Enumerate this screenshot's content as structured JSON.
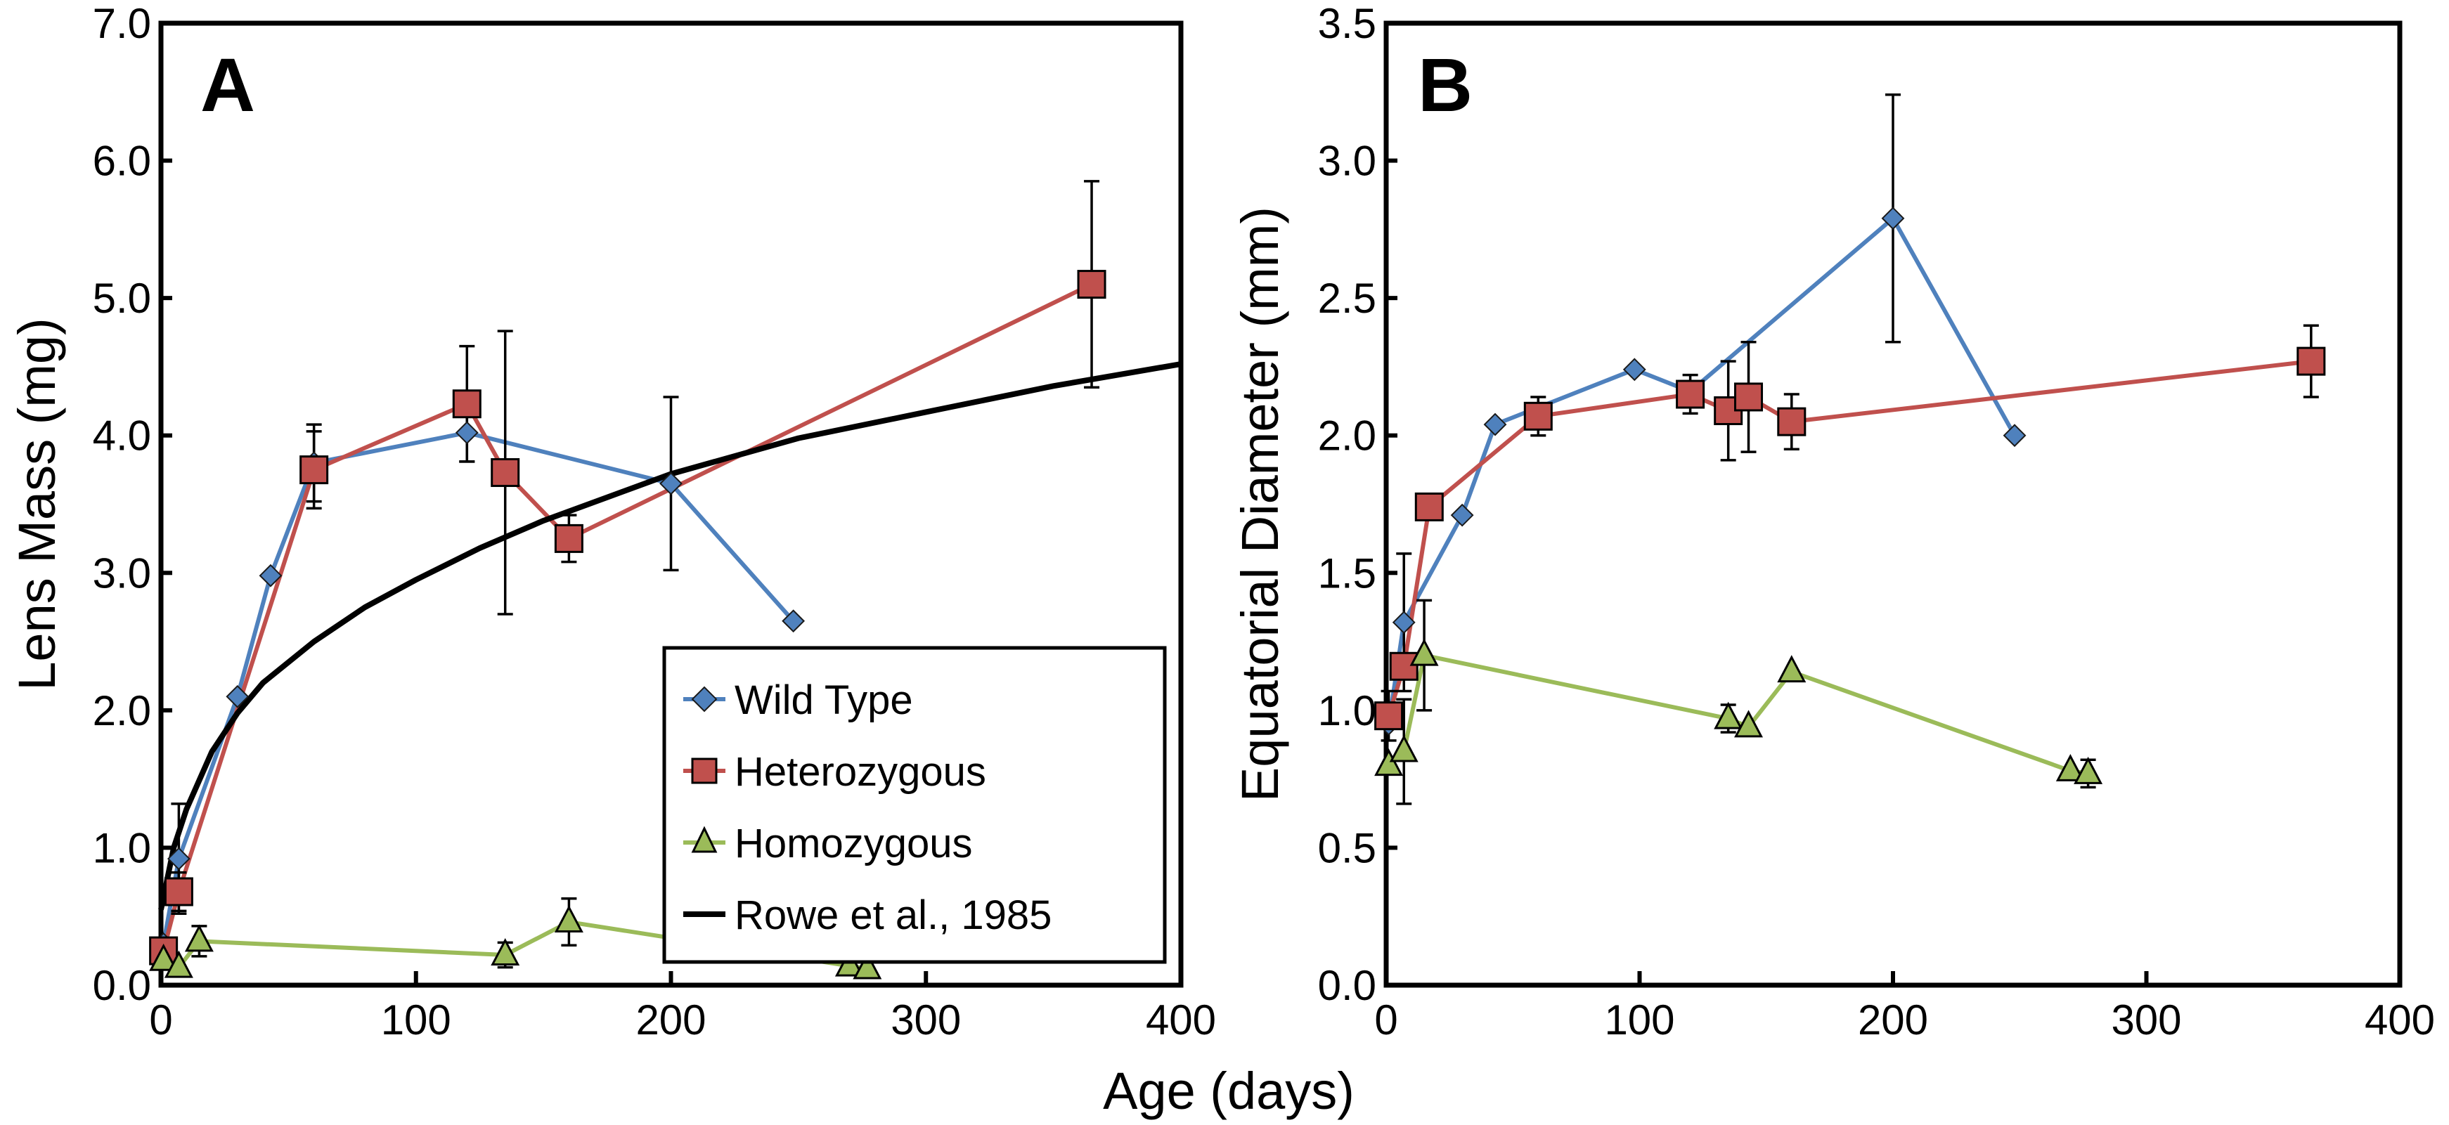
{
  "figure": {
    "xlabel_shared": "Age (days)"
  },
  "colors": {
    "wild_type": "#4f81bd",
    "heterozygous": "#c0504d",
    "homozygous": "#9bbb59",
    "rowe": "#000000"
  },
  "legend": {
    "placement": "lower-right of panel A",
    "entries": [
      {
        "label": "Wild Type",
        "marker": "diamond",
        "color": "#4f81bd"
      },
      {
        "label": "Heterozygous",
        "marker": "square",
        "color": "#c0504d"
      },
      {
        "label": "Homozygous",
        "marker": "triangle",
        "color": "#9bbb59"
      },
      {
        "label": "Rowe et al., 1985",
        "marker": "none",
        "color": "#000000"
      }
    ]
  },
  "chart_data": [
    {
      "type": "line",
      "panel": "A",
      "title": "",
      "xlabel": "Age (days)",
      "ylabel": "Lens Mass (mg)",
      "xlim": [
        0,
        400
      ],
      "ylim": [
        0,
        7
      ],
      "xticks": [
        "0",
        "100",
        "200",
        "300",
        "400"
      ],
      "yticks": [
        "0.0",
        "1.0",
        "2.0",
        "3.0",
        "4.0",
        "5.0",
        "6.0",
        "7.0"
      ],
      "grid": false,
      "legend": "lower-right",
      "series": [
        {
          "name": "Wild Type",
          "marker": "diamond",
          "points": [
            {
              "x": 1,
              "y": 0.3
            },
            {
              "x": 7,
              "y": 0.92,
              "err": 0.4
            },
            {
              "x": 30,
              "y": 2.1
            },
            {
              "x": 43,
              "y": 2.98
            },
            {
              "x": 60,
              "y": 3.8,
              "err": 0.28
            },
            {
              "x": 120,
              "y": 4.02,
              "err": 0.21
            },
            {
              "x": 200,
              "y": 3.65,
              "err": 0.63
            },
            {
              "x": 248,
              "y": 2.65
            }
          ]
        },
        {
          "name": "Heterozygous",
          "marker": "square",
          "points": [
            {
              "x": 1,
              "y": 0.25
            },
            {
              "x": 7,
              "y": 0.68,
              "err": 0.14
            },
            {
              "x": 60,
              "y": 3.75,
              "err": 0.28
            },
            {
              "x": 120,
              "y": 4.23,
              "err": 0.42
            },
            {
              "x": 135,
              "y": 3.73,
              "err": 1.03
            },
            {
              "x": 160,
              "y": 3.25,
              "err": 0.17
            },
            {
              "x": 365,
              "y": 5.1,
              "err": 0.75
            }
          ]
        },
        {
          "name": "Homozygous",
          "marker": "triangle",
          "points": [
            {
              "x": 1,
              "y": 0.18
            },
            {
              "x": 7,
              "y": 0.13
            },
            {
              "x": 15,
              "y": 0.32,
              "err": 0.11
            },
            {
              "x": 135,
              "y": 0.22,
              "err": 0.09
            },
            {
              "x": 160,
              "y": 0.46,
              "err": 0.17
            },
            {
              "x": 270,
              "y": 0.14
            },
            {
              "x": 277,
              "y": 0.12
            }
          ]
        },
        {
          "name": "Rowe et al., 1985",
          "marker": "none",
          "points": [
            {
              "x": 0,
              "y": 0.55
            },
            {
              "x": 5,
              "y": 1.0
            },
            {
              "x": 10,
              "y": 1.28
            },
            {
              "x": 20,
              "y": 1.7
            },
            {
              "x": 30,
              "y": 1.98
            },
            {
              "x": 40,
              "y": 2.2
            },
            {
              "x": 60,
              "y": 2.5
            },
            {
              "x": 80,
              "y": 2.75
            },
            {
              "x": 100,
              "y": 2.95
            },
            {
              "x": 125,
              "y": 3.18
            },
            {
              "x": 150,
              "y": 3.38
            },
            {
              "x": 175,
              "y": 3.55
            },
            {
              "x": 200,
              "y": 3.72
            },
            {
              "x": 250,
              "y": 3.98
            },
            {
              "x": 300,
              "y": 4.17
            },
            {
              "x": 350,
              "y": 4.36
            },
            {
              "x": 400,
              "y": 4.52
            }
          ]
        }
      ]
    },
    {
      "type": "line",
      "panel": "B",
      "title": "",
      "xlabel": "Age (days)",
      "ylabel": "Equatorial Diameter (mm)",
      "xlim": [
        0,
        400
      ],
      "ylim": [
        0,
        3.5
      ],
      "xticks": [
        "0",
        "100",
        "200",
        "300",
        "400"
      ],
      "yticks": [
        "0.0",
        "0.5",
        "1.0",
        "1.5",
        "2.0",
        "2.5",
        "3.0",
        "3.5"
      ],
      "grid": false,
      "legend": "none",
      "series": [
        {
          "name": "Wild Type",
          "marker": "diamond",
          "points": [
            {
              "x": 1,
              "y": 0.95
            },
            {
              "x": 7,
              "y": 1.32,
              "err": 0.25
            },
            {
              "x": 30,
              "y": 1.71
            },
            {
              "x": 43,
              "y": 2.04
            },
            {
              "x": 98,
              "y": 2.24
            },
            {
              "x": 120,
              "y": 2.16
            },
            {
              "x": 200,
              "y": 2.79,
              "err": 0.45
            },
            {
              "x": 248,
              "y": 2.0
            }
          ]
        },
        {
          "name": "Heterozygous",
          "marker": "square",
          "points": [
            {
              "x": 1,
              "y": 0.98,
              "err": 0.09
            },
            {
              "x": 7,
              "y": 1.16
            },
            {
              "x": 17,
              "y": 1.74
            },
            {
              "x": 60,
              "y": 2.07,
              "err": 0.07
            },
            {
              "x": 120,
              "y": 2.15,
              "err": 0.07
            },
            {
              "x": 135,
              "y": 2.09,
              "err": 0.18
            },
            {
              "x": 143,
              "y": 2.14,
              "err": 0.2
            },
            {
              "x": 160,
              "y": 2.05,
              "err": 0.1
            },
            {
              "x": 365,
              "y": 2.27,
              "err": 0.13
            }
          ]
        },
        {
          "name": "Homozygous",
          "marker": "triangle",
          "points": [
            {
              "x": 1,
              "y": 0.8
            },
            {
              "x": 7,
              "y": 0.85,
              "err": 0.19
            },
            {
              "x": 15,
              "y": 1.2,
              "err": 0.2
            },
            {
              "x": 135,
              "y": 0.97,
              "err": 0.05
            },
            {
              "x": 143,
              "y": 0.94
            },
            {
              "x": 160,
              "y": 1.14
            },
            {
              "x": 270,
              "y": 0.78
            },
            {
              "x": 277,
              "y": 0.77,
              "err": 0.05
            }
          ]
        }
      ]
    }
  ]
}
